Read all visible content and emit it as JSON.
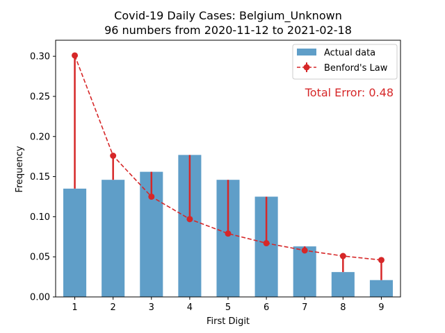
{
  "chart_data": {
    "type": "bar",
    "title": "Covid-19 Daily Cases: Belgium_Unknown",
    "subtitle": "96 numbers from 2020-11-12 to 2021-02-18",
    "xlabel": "First Digit",
    "ylabel": "Frequency",
    "categories": [
      "1",
      "2",
      "3",
      "4",
      "5",
      "6",
      "7",
      "8",
      "9"
    ],
    "ylim": [
      0,
      0.32
    ],
    "yticks": [
      "0.00",
      "0.05",
      "0.10",
      "0.15",
      "0.20",
      "0.25",
      "0.30"
    ],
    "series": [
      {
        "name": "Actual data",
        "type": "bar",
        "color": "#5f9ec8",
        "values": [
          0.135,
          0.146,
          0.156,
          0.177,
          0.146,
          0.125,
          0.063,
          0.031,
          0.021
        ]
      },
      {
        "name": "Benford's Law",
        "type": "line",
        "color": "#d62728",
        "values": [
          0.301,
          0.176,
          0.125,
          0.097,
          0.079,
          0.067,
          0.058,
          0.051,
          0.046
        ]
      }
    ],
    "annotation": "Total Error: 0.48",
    "legend_position": "top-right",
    "grid": false
  }
}
